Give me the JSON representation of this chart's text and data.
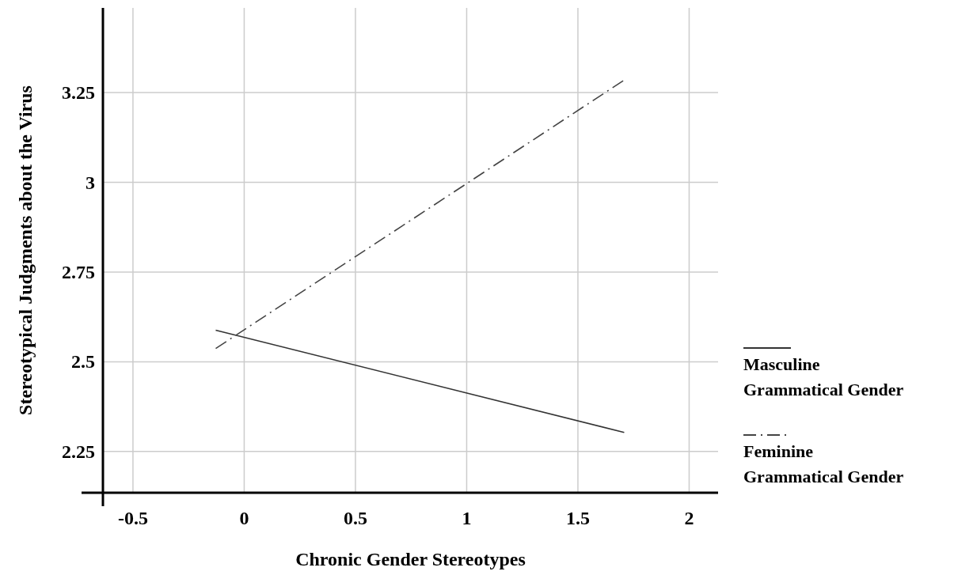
{
  "chart_data": {
    "type": "line",
    "xlabel": "Chronic Gender Stereotypes",
    "ylabel": "Stereotypical Judgments about the Virus",
    "xlim": [
      -0.635,
      2.13
    ],
    "ylim": [
      2.135,
      3.486
    ],
    "xticks": [
      -0.5,
      0,
      0.5,
      1,
      1.5,
      2
    ],
    "yticks": [
      2.25,
      2.5,
      2.75,
      3,
      3.25
    ],
    "grid": true,
    "legend": "right",
    "x": [
      -0.128,
      1.708
    ],
    "series": [
      {
        "name": "Masculine Grammatical Gender",
        "color": "#333333",
        "line_style": "solid",
        "values": [
          2.588,
          2.303
        ]
      },
      {
        "name": "Feminine Grammatical Gender",
        "color": "#444444",
        "line_style": "dashdot",
        "values": [
          2.537,
          3.285
        ]
      }
    ]
  }
}
